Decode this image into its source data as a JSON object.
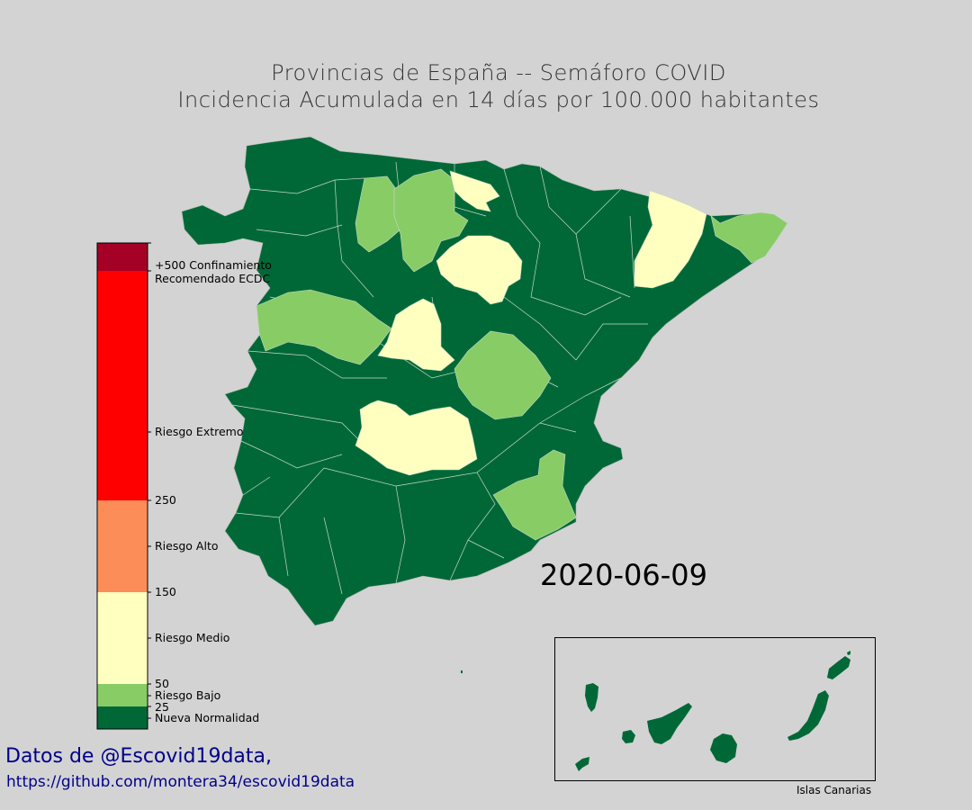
{
  "title": {
    "line1": "Provincias de España -- Semáforo COVID",
    "line2": "Incidencia Acumulada en 14 días por 100.000 habitantes"
  },
  "date": "2020-06-09",
  "colorbar": {
    "labels": [
      {
        "id": "confinamiento",
        "text": "+500 Confinamiento"
      },
      {
        "id": "confinamiento2",
        "text": "Recomendado ECDC"
      },
      {
        "id": "extremo",
        "text": "Riesgo Extremo"
      },
      {
        "id": "t250",
        "text": "250"
      },
      {
        "id": "alto",
        "text": "Riesgo Alto"
      },
      {
        "id": "t150",
        "text": "150"
      },
      {
        "id": "medio",
        "text": "Riesgo Medio"
      },
      {
        "id": "t50",
        "text": "50"
      },
      {
        "id": "bajo",
        "text": "Riesgo Bajo"
      },
      {
        "id": "t25",
        "text": "25"
      },
      {
        "id": "normal",
        "text": "Nueva Normalidad"
      }
    ],
    "colors": {
      "confinamiento": "#a50026",
      "extremo": "#ff0000",
      "alto": "#fc8d59",
      "medio": "#ffffbf",
      "bajo": "#88cc66",
      "normal": "#006837"
    }
  },
  "credits": {
    "line1": "Datos de @Escovid19data,",
    "line2": "https://github.com/montera34/escovid19data"
  },
  "inset": {
    "label": "Islas Canarias"
  }
}
